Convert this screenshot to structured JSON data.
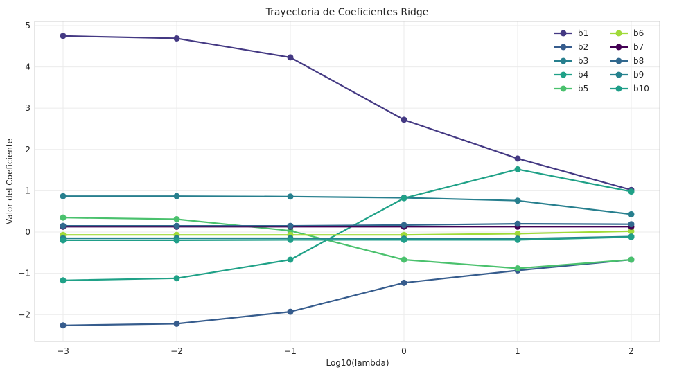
{
  "chart_data": {
    "type": "line",
    "title": "Trayectoria de Coeficientes Ridge",
    "xlabel": "Log10(lambda)",
    "ylabel": "Valor del Coeficiente",
    "x": [
      -3,
      -2,
      -1,
      0,
      1,
      2
    ],
    "xticks": [
      -3,
      -2,
      -1,
      0,
      1,
      2
    ],
    "xtick_labels": [
      "−3",
      "−2",
      "−1",
      "0",
      "1",
      "2"
    ],
    "yticks": [
      -2,
      -1,
      0,
      1,
      2,
      3,
      4,
      5
    ],
    "ytick_labels": [
      "−2",
      "−1",
      "0",
      "1",
      "2",
      "3",
      "4",
      "5"
    ],
    "xlim": [
      -3.25,
      2.25
    ],
    "ylim": [
      -2.65,
      5.1
    ],
    "grid": true,
    "legend_position": "top-right",
    "legend_columns": 2,
    "series": [
      {
        "name": "b1",
        "color": "#443983",
        "values": [
          4.75,
          4.69,
          4.23,
          2.72,
          1.78,
          1.02
        ]
      },
      {
        "name": "b2",
        "color": "#365c8d",
        "values": [
          -2.26,
          -2.22,
          -1.93,
          -1.23,
          -0.93,
          -0.67
        ]
      },
      {
        "name": "b3",
        "color": "#277f8e",
        "values": [
          0.87,
          0.87,
          0.86,
          0.83,
          0.76,
          0.43
        ]
      },
      {
        "name": "b4",
        "color": "#1fa187",
        "values": [
          -1.17,
          -1.12,
          -0.67,
          0.82,
          1.52,
          0.98
        ]
      },
      {
        "name": "b5",
        "color": "#4ac16d",
        "values": [
          0.35,
          0.31,
          0.03,
          -0.67,
          -0.88,
          -0.67
        ]
      },
      {
        "name": "b6",
        "color": "#a0da39",
        "values": [
          -0.07,
          -0.07,
          -0.07,
          -0.07,
          -0.04,
          0.02
        ]
      },
      {
        "name": "b7",
        "color": "#440154",
        "values": [
          0.13,
          0.13,
          0.13,
          0.13,
          0.13,
          0.13
        ]
      },
      {
        "name": "b8",
        "color": "#31688e",
        "values": [
          0.15,
          0.15,
          0.15,
          0.17,
          0.2,
          0.19
        ]
      },
      {
        "name": "b9",
        "color": "#26828e",
        "values": [
          -0.15,
          -0.15,
          -0.15,
          -0.16,
          -0.16,
          -0.11
        ]
      },
      {
        "name": "b10",
        "color": "#1f9e89",
        "values": [
          -0.2,
          -0.2,
          -0.19,
          -0.19,
          -0.19,
          -0.12
        ]
      }
    ]
  }
}
